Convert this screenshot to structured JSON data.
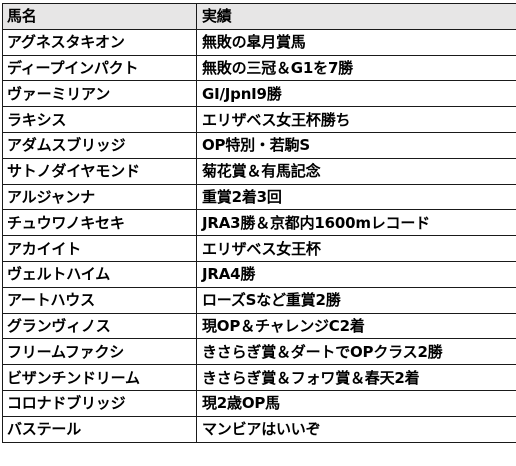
{
  "table": {
    "headers": [
      "馬名",
      "実績"
    ],
    "rows": [
      [
        "アグネスタキオン",
        "無敗の皐月賞馬"
      ],
      [
        "ディープインパクト",
        "無敗の三冠＆G1を7勝"
      ],
      [
        "ヴァーミリアン",
        "GI/JpnI9勝"
      ],
      [
        "ラキシス",
        "エリザベス女王杯勝ち"
      ],
      [
        "アダムスブリッジ",
        "OP特別・若駒S"
      ],
      [
        "サトノダイヤモンド",
        "菊花賞＆有馬記念"
      ],
      [
        "アルジャンナ",
        "重賞2着3回"
      ],
      [
        "チュウワノキセキ",
        "JRA3勝＆京都内1600mレコード"
      ],
      [
        "アカイイト",
        "エリザベス女王杯"
      ],
      [
        "ヴェルトハイム",
        "JRA4勝"
      ],
      [
        "アートハウス",
        "ローズSなど重賞2勝"
      ],
      [
        "グランヴィノス",
        "現OP＆チャレンジC2着"
      ],
      [
        "フリームファクシ",
        "きさらぎ賞＆ダートでOPクラス2勝"
      ],
      [
        "ビザンチンドリーム",
        "きさらぎ賞＆フォワ賞＆春天2着"
      ],
      [
        "コロナドブリッジ",
        "現2歳OP馬"
      ],
      [
        "バステール",
        "マンビアはいいぞ"
      ]
    ]
  },
  "colors": {
    "header_bg": "#e7e6e6",
    "border": "#1a1a1a",
    "text": "#000000"
  }
}
